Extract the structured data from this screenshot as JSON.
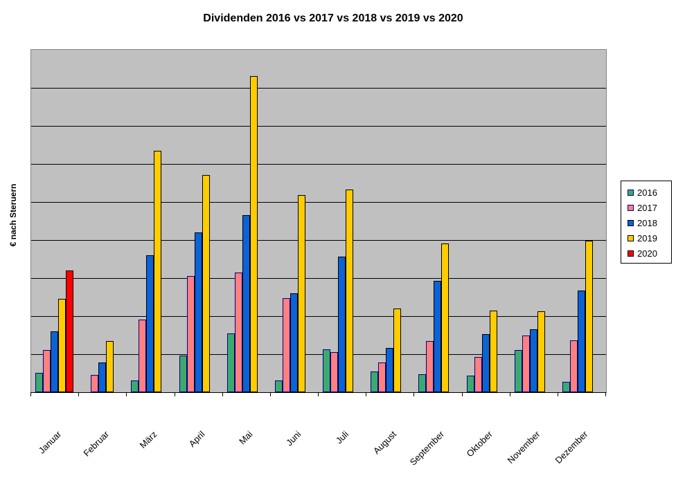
{
  "chart_data": {
    "type": "bar",
    "title": "Dividenden 2016 vs 2017 vs 2018 vs 2019 vs 2020",
    "ylabel": "€ nach Steruern",
    "xlabel": "",
    "categories": [
      "Januar",
      "Februar",
      "März",
      "April",
      "Mai",
      "Juni",
      "Juli",
      "August",
      "September",
      "Oktober",
      "November",
      "Dezember"
    ],
    "series": [
      {
        "name": "2016",
        "color": "#3CAA6E",
        "border_color": "#000080",
        "values": [
          50,
          null,
          30,
          97,
          155,
          30,
          112,
          55,
          47,
          43,
          111,
          27
        ]
      },
      {
        "name": "2017",
        "color": "#FF8080",
        "border_color": "#000080",
        "values": [
          110,
          45,
          190,
          305,
          315,
          248,
          106,
          79,
          135,
          92,
          149,
          137
        ]
      },
      {
        "name": "2018",
        "color": "#0C62D6",
        "border_color": "#000000",
        "values": [
          160,
          78,
          360,
          420,
          465,
          260,
          357,
          117,
          292,
          152,
          165,
          267
        ]
      },
      {
        "name": "2019",
        "color": "#FFCC00",
        "border_color": "#000000",
        "values": [
          245,
          135,
          635,
          570,
          830,
          518,
          533,
          220,
          390,
          215,
          213,
          398
        ]
      },
      {
        "name": "2020",
        "color": "#FF0000",
        "border_color": "#000000",
        "values": [
          320,
          null,
          null,
          null,
          null,
          null,
          null,
          null,
          null,
          null,
          null,
          null
        ]
      }
    ],
    "ylim": [
      0,
      900
    ],
    "y_gridline_interval": 100,
    "y_tick_labels_visible": false,
    "grid": "horizontal",
    "legend_position": "right",
    "plot_bg_color": "#C0C0C0",
    "gridline_color": "#000000"
  }
}
